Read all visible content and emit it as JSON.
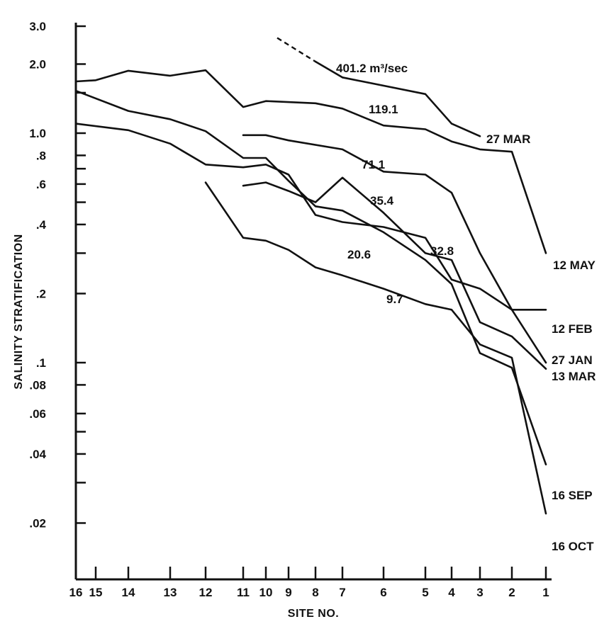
{
  "chart_data": {
    "type": "line",
    "title": "",
    "xlabel": "SITE NO.",
    "ylabel": "SALINITY STRATIFICATION",
    "y_scale": "log",
    "ylim": [
      0.018,
      3.0
    ],
    "y_ticks": [
      {
        "v": 3.0,
        "label": "3.0"
      },
      {
        "v": 2.0,
        "label": "2.0"
      },
      {
        "v": 1.5,
        "label": ""
      },
      {
        "v": 1.0,
        "label": "1.0"
      },
      {
        "v": 0.8,
        "label": ".8"
      },
      {
        "v": 0.7,
        "label": ""
      },
      {
        "v": 0.6,
        "label": ".6"
      },
      {
        "v": 0.5,
        "label": ""
      },
      {
        "v": 0.4,
        "label": ".4"
      },
      {
        "v": 0.3,
        "label": ""
      },
      {
        "v": 0.2,
        "label": ".2"
      },
      {
        "v": 0.1,
        "label": ".1"
      },
      {
        "v": 0.08,
        "label": ".08"
      },
      {
        "v": 0.06,
        "label": ".06"
      },
      {
        "v": 0.05,
        "label": ""
      },
      {
        "v": 0.04,
        "label": ".04"
      },
      {
        "v": 0.03,
        "label": ""
      },
      {
        "v": 0.02,
        "label": ".02"
      }
    ],
    "x_ticks": [
      "16",
      "15",
      "14",
      "13",
      "12",
      "11",
      "10",
      "9",
      "8",
      "7",
      "6",
      "5",
      "4",
      "3",
      "2",
      "1"
    ],
    "series": [
      {
        "name": "12 MAY",
        "flow": "401.2 m³/sec",
        "x": [
          "7",
          "5",
          "4",
          "3"
        ],
        "y": [
          1.75,
          1.48,
          1.1,
          0.97
        ]
      },
      {
        "name": "27 MAR",
        "flow": "119.1",
        "x": [
          "16",
          "15",
          "14",
          "13",
          "12",
          "11",
          "10",
          "8",
          "7",
          "6",
          "5",
          "4",
          "3",
          "2",
          "1"
        ],
        "y": [
          1.68,
          1.7,
          1.87,
          1.78,
          1.88,
          1.3,
          1.38,
          1.35,
          1.28,
          1.08,
          1.04,
          0.92,
          0.85,
          0.83,
          0.3
        ]
      },
      {
        "name": "12 FEB",
        "flow": "71.1",
        "x": [
          "11",
          "10",
          "9",
          "7",
          "6",
          "5",
          "4",
          "3",
          "2",
          "1"
        ],
        "y": [
          0.98,
          0.98,
          0.93,
          0.85,
          0.68,
          0.66,
          0.55,
          0.3,
          0.17,
          0.1
        ]
      },
      {
        "name": "27 JAN",
        "flow": "35.4",
        "x": [
          "16",
          "14",
          "13",
          "12",
          "11",
          "10",
          "9",
          "8",
          "7",
          "6",
          "5",
          "4",
          "3",
          "2",
          "1"
        ],
        "y": [
          1.53,
          1.25,
          1.15,
          1.02,
          0.78,
          0.78,
          0.62,
          0.48,
          0.46,
          0.37,
          0.28,
          0.22,
          0.11,
          0.095,
          0.036
        ]
      },
      {
        "name": "13 MAR",
        "flow": "32.8",
        "x": [
          "16",
          "14",
          "13",
          "12",
          "11",
          "10",
          "9",
          "8",
          "7",
          "6",
          "5",
          "4",
          "3",
          "2",
          "1"
        ],
        "y": [
          1.1,
          1.03,
          0.9,
          0.73,
          0.71,
          0.73,
          0.66,
          0.44,
          0.41,
          0.39,
          0.35,
          0.23,
          0.21,
          0.17,
          0.17
        ]
      },
      {
        "name": "16 SEP",
        "flow": "20.6",
        "x": [
          "11",
          "10",
          "9",
          "8",
          "7",
          "6",
          "5",
          "4",
          "3",
          "2",
          "1"
        ],
        "y": [
          0.59,
          0.61,
          0.56,
          0.5,
          0.64,
          0.45,
          0.3,
          0.28,
          0.15,
          0.13,
          0.094
        ]
      },
      {
        "name": "16 OCT",
        "flow": "9.7",
        "x": [
          "12",
          "11",
          "10",
          "9",
          "8",
          "7",
          "6",
          "5",
          "4",
          "3",
          "2",
          "1"
        ],
        "y": [
          0.61,
          0.35,
          0.34,
          0.31,
          0.26,
          0.24,
          0.21,
          0.18,
          0.17,
          0.12,
          0.105,
          0.022
        ]
      }
    ],
    "extrapolated_segment": {
      "x": [
        "9.5",
        "8"
      ],
      "y": [
        2.6,
        2.05
      ]
    },
    "grid": false,
    "legend": "none"
  },
  "annotations": [
    {
      "id": "401.2",
      "text": "401.2 m³/sec"
    },
    {
      "id": "119.1",
      "text": "119.1"
    },
    {
      "id": "71.1",
      "text": "71.1"
    },
    {
      "id": "35.4",
      "text": "35.4"
    },
    {
      "id": "32.8",
      "text": "32.8"
    },
    {
      "id": "20.6",
      "text": "20.6"
    },
    {
      "id": "9.7",
      "text": "9.7"
    }
  ]
}
